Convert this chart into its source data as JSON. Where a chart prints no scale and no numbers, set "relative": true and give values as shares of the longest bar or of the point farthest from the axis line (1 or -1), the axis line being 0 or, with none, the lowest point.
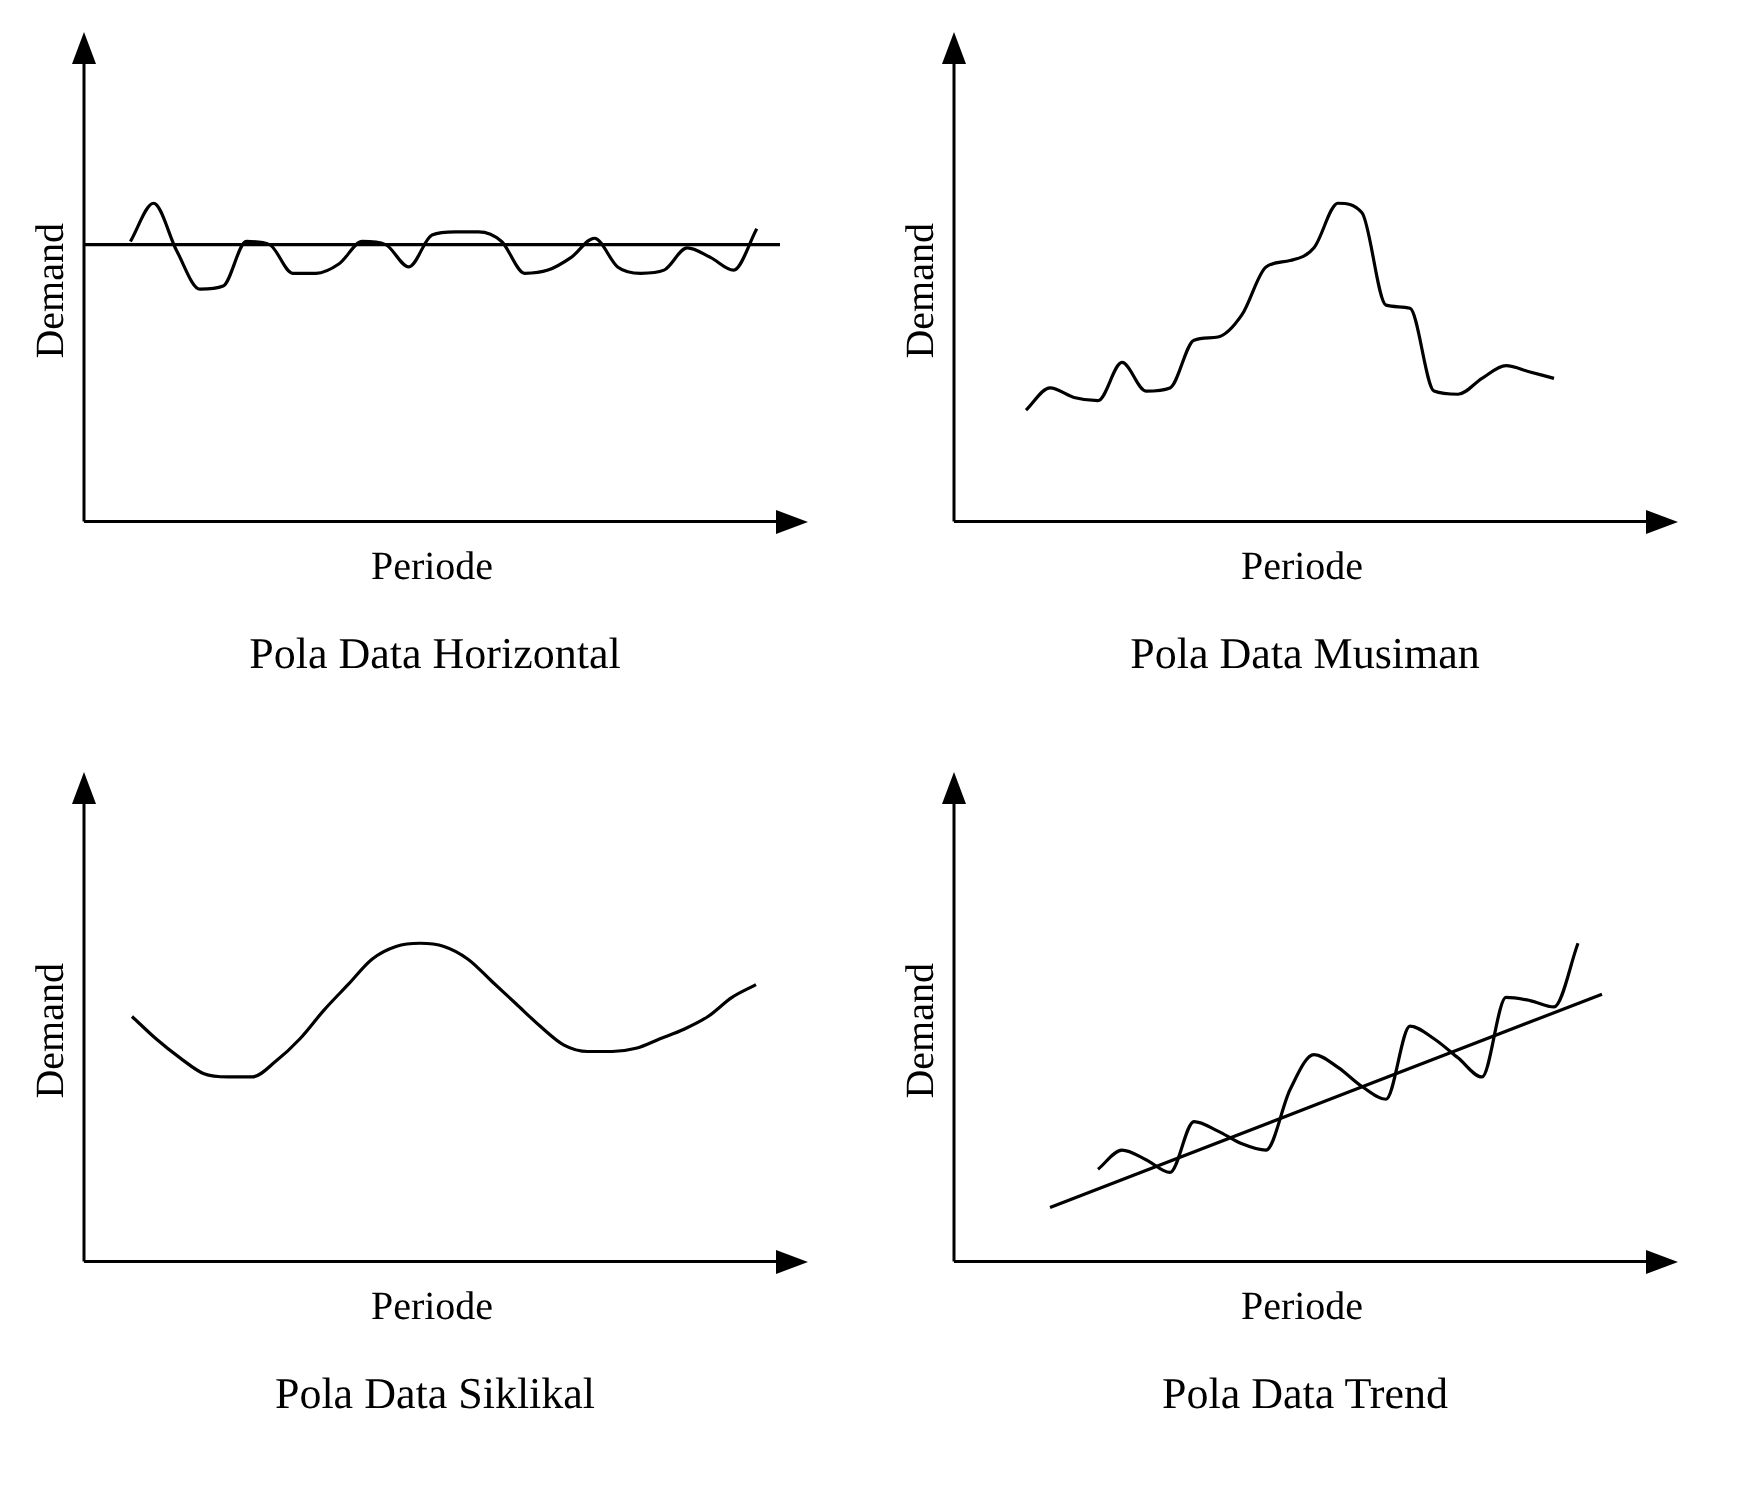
{
  "chart_data": [
    {
      "type": "line",
      "title": "Pola Data Horizontal",
      "xlabel": "Periode",
      "ylabel": "Demand",
      "relative": true,
      "marker": "none",
      "categories": [
        null,
        null,
        null,
        null,
        null,
        null,
        null,
        null,
        null,
        null,
        null,
        null,
        null,
        null,
        null,
        null,
        null,
        null,
        null,
        null,
        null,
        null,
        null,
        null,
        null,
        null,
        null,
        null,
        null,
        null,
        null
      ],
      "series": [
        {
          "color": "#000000",
          "values": [
            null,
            null,
            0.88,
            1,
            0.85,
            0.73,
            0.74,
            0.88,
            0.87,
            0.78,
            0.78,
            0.81,
            0.88,
            0.87,
            0.8,
            0.9,
            0.91,
            0.91,
            0.88,
            0.78,
            0.79,
            0.83,
            0.89,
            0.8,
            0.78,
            0.79,
            0.86,
            0.83,
            0.79,
            0.92,
            null
          ]
        },
        {
          "color": "#000000",
          "values": [
            0.87,
            0.87,
            0.87,
            0.87,
            0.87,
            0.87,
            0.87,
            0.87,
            0.87,
            0.87,
            0.87,
            0.87,
            0.87,
            0.87,
            0.87,
            0.87,
            0.87,
            0.87,
            0.87,
            0.87,
            0.87,
            0.87,
            0.87,
            0.87,
            0.87,
            0.87,
            0.87,
            0.87,
            0.87,
            0.87,
            0.87
          ]
        }
      ]
    },
    {
      "type": "line",
      "title": "Pola Data Musiman",
      "xlabel": "Periode",
      "ylabel": "Demand",
      "relative": true,
      "marker": "none",
      "categories": [
        null,
        null,
        null,
        null,
        null,
        null,
        null,
        null,
        null,
        null,
        null,
        null,
        null,
        null,
        null,
        null,
        null,
        null,
        null,
        null,
        null,
        null,
        null,
        null,
        null,
        null,
        null,
        null,
        null,
        null
      ],
      "series": [
        {
          "color": "#000000",
          "values": [
            null,
            null,
            null,
            0.35,
            0.42,
            0.39,
            0.38,
            0.5,
            0.41,
            0.42,
            0.57,
            0.58,
            0.65,
            0.8,
            0.82,
            0.86,
            1,
            0.97,
            0.68,
            0.67,
            0.41,
            0.4,
            0.45,
            0.49,
            0.47,
            0.45,
            null,
            null,
            null,
            null
          ]
        }
      ]
    },
    {
      "type": "line",
      "title": "Pola Data Siklikal",
      "xlabel": "Periode",
      "ylabel": "Demand",
      "relative": true,
      "marker": "none",
      "categories": [
        null,
        null,
        null,
        null,
        null,
        null,
        null,
        null,
        null,
        null,
        null,
        null,
        null,
        null,
        null,
        null,
        null,
        null,
        null,
        null,
        null,
        null,
        null,
        null,
        null,
        null,
        null,
        null,
        null,
        null
      ],
      "series": [
        {
          "color": "#000000",
          "values": [
            null,
            null,
            0.77,
            0.7,
            0.64,
            0.59,
            0.58,
            0.58,
            0.63,
            0.7,
            0.79,
            0.87,
            0.95,
            0.99,
            1,
            0.99,
            0.95,
            0.88,
            0.81,
            0.74,
            0.68,
            0.66,
            0.66,
            0.67,
            0.7,
            0.73,
            0.77,
            0.83,
            0.87,
            null
          ]
        }
      ]
    },
    {
      "type": "line",
      "title": "Pola Data Trend",
      "xlabel": "Periode",
      "ylabel": "Demand",
      "relative": true,
      "marker": "none",
      "categories": [
        null,
        null,
        null,
        null,
        null,
        null,
        null,
        null,
        null,
        null,
        null,
        null,
        null,
        null,
        null,
        null,
        null,
        null,
        null,
        null,
        null,
        null,
        null,
        null,
        null,
        null,
        null,
        null,
        null,
        null
      ],
      "series": [
        {
          "color": "#000000",
          "values": [
            null,
            null,
            null,
            null,
            null,
            null,
            0.29,
            0.35,
            0.32,
            0.28,
            0.44,
            0.41,
            0.37,
            0.35,
            0.54,
            0.65,
            0.61,
            0.55,
            0.51,
            0.74,
            0.7,
            0.64,
            0.58,
            0.83,
            0.82,
            0.8,
            1,
            null,
            null,
            null
          ]
        },
        {
          "color": "#000000",
          "values": [
            null,
            null,
            null,
            null,
            0.17,
            null,
            null,
            null,
            null,
            null,
            null,
            null,
            null,
            null,
            null,
            null,
            null,
            null,
            null,
            null,
            null,
            null,
            null,
            null,
            null,
            null,
            null,
            0.84,
            null,
            null
          ]
        }
      ]
    }
  ]
}
